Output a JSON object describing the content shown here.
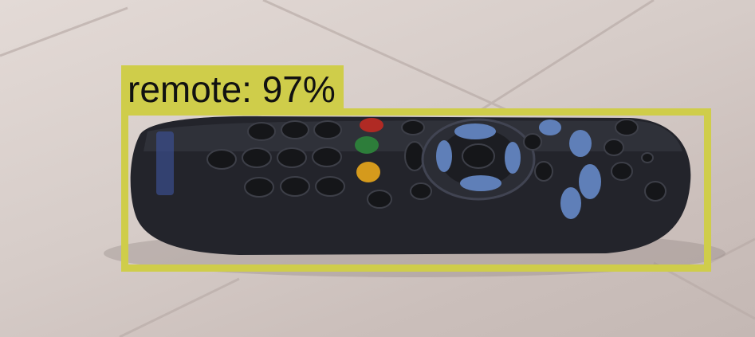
{
  "detection": {
    "label": "remote: 97%",
    "class": "remote",
    "confidence": 0.97,
    "box_color": "#cfcd4a"
  },
  "scene": {
    "object": "tv-remote-control",
    "surface": "tiled-floor",
    "colors": {
      "floor": "#d9cfcb",
      "grout": "#b9aca8",
      "remote_body": "#23242b",
      "button_dark": "#151619",
      "button_blue": "#5f7fb8",
      "button_red": "#b02a24",
      "button_green": "#2d7d3a",
      "button_yellow": "#d59a1c"
    }
  }
}
